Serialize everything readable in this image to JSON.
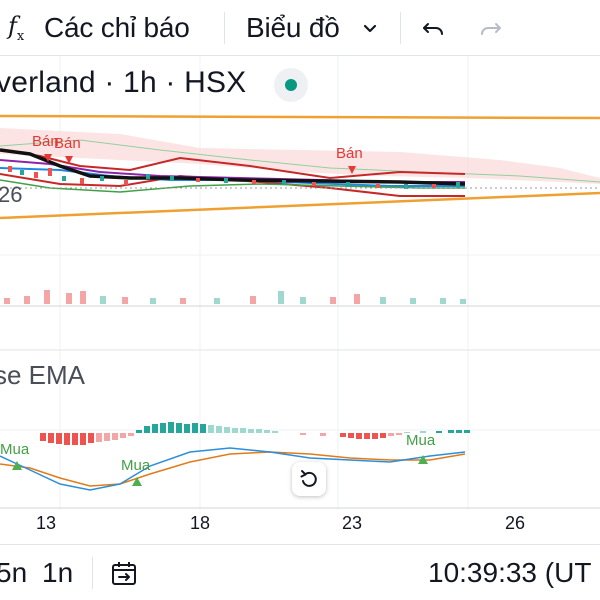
{
  "toolbar": {
    "fx_label": "f",
    "fx_sub": "x",
    "indicators_label": "Các chỉ báo",
    "charts_label": "Biểu đồ",
    "chevron_icon": "chevron-down-icon",
    "undo_icon": "undo-icon",
    "redo_icon": "redo-icon"
  },
  "legend": {
    "title": "verland · 1h · HSX",
    "status_color": "#089981"
  },
  "price_axis_fragment": "26",
  "indicator": {
    "title": "se EMA"
  },
  "signals": {
    "sell": [
      "Bán",
      "Bán",
      "Bán"
    ],
    "buy": [
      "Mua",
      "Mua",
      "Mua"
    ]
  },
  "x_axis": {
    "labels": [
      "13",
      "18",
      "23",
      "26"
    ]
  },
  "bottom_bar": {
    "range_5n": "5n",
    "range_1n": "1n",
    "date_range_icon": "calendar-goto-icon",
    "time": "10:39:33 (UT"
  },
  "colors": {
    "up": "#26a69a",
    "down": "#ef5350",
    "trendline": "#f0a030",
    "sell_marker": "#e53935",
    "buy_marker": "#4caf50"
  }
}
